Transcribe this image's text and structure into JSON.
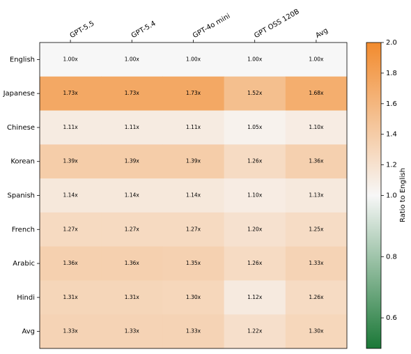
{
  "chart_data": {
    "type": "heatmap",
    "columns": [
      "GPT-5.5",
      "GPT-5.4",
      "GPT-4o mini",
      "GPT OSS 120B",
      "Avg"
    ],
    "rows": [
      "English",
      "Japanese",
      "Chinese",
      "Korean",
      "Spanish",
      "French",
      "Arabic",
      "Hindi",
      "Avg"
    ],
    "values": [
      [
        1.0,
        1.0,
        1.0,
        1.0,
        1.0
      ],
      [
        1.73,
        1.73,
        1.73,
        1.52,
        1.68
      ],
      [
        1.11,
        1.11,
        1.11,
        1.05,
        1.1
      ],
      [
        1.39,
        1.39,
        1.39,
        1.26,
        1.36
      ],
      [
        1.14,
        1.14,
        1.14,
        1.1,
        1.13
      ],
      [
        1.27,
        1.27,
        1.27,
        1.2,
        1.25
      ],
      [
        1.36,
        1.36,
        1.35,
        1.26,
        1.33
      ],
      [
        1.31,
        1.31,
        1.3,
        1.12,
        1.26
      ],
      [
        1.33,
        1.33,
        1.33,
        1.22,
        1.3
      ]
    ],
    "value_labels": [
      [
        "1.00x",
        "1.00x",
        "1.00x",
        "1.00x",
        "1.00x"
      ],
      [
        "1.73x",
        "1.73x",
        "1.73x",
        "1.52x",
        "1.68x"
      ],
      [
        "1.11x",
        "1.11x",
        "1.11x",
        "1.05x",
        "1.10x"
      ],
      [
        "1.39x",
        "1.39x",
        "1.39x",
        "1.26x",
        "1.36x"
      ],
      [
        "1.14x",
        "1.14x",
        "1.14x",
        "1.10x",
        "1.13x"
      ],
      [
        "1.27x",
        "1.27x",
        "1.27x",
        "1.20x",
        "1.25x"
      ],
      [
        "1.36x",
        "1.36x",
        "1.35x",
        "1.26x",
        "1.33x"
      ],
      [
        "1.31x",
        "1.31x",
        "1.30x",
        "1.12x",
        "1.26x"
      ],
      [
        "1.33x",
        "1.33x",
        "1.33x",
        "1.22x",
        "1.30x"
      ]
    ],
    "colorbar_label": "Ratio to English",
    "clim": [
      0.5,
      2.0
    ],
    "norm_center": {
      "value": 1.0,
      "label": "1.0"
    },
    "colors": {
      "low": "#1b7837",
      "center": "#f7f7f7",
      "high": "#f28b2e"
    },
    "cticks": [
      0.6,
      0.8,
      {
        "value": 1.0,
        "label": "1.0"
      },
      1.2,
      1.4,
      1.6,
      1.8,
      {
        "value": 2.0,
        "label": "2.0"
      }
    ]
  }
}
